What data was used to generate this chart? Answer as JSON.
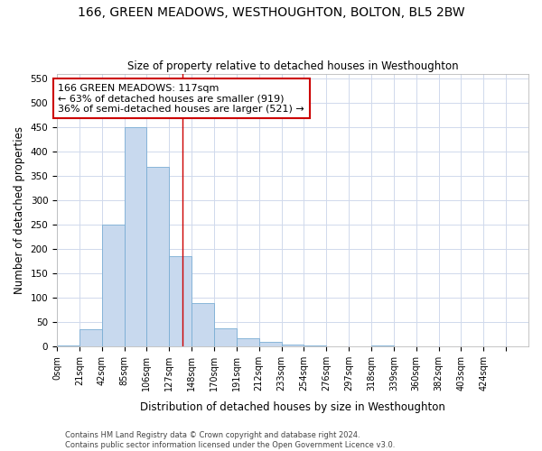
{
  "title": "166, GREEN MEADOWS, WESTHOUGHTON, BOLTON, BL5 2BW",
  "subtitle": "Size of property relative to detached houses in Westhoughton",
  "xlabel": "Distribution of detached houses by size in Westhoughton",
  "ylabel": "Number of detached properties",
  "bar_color": "#c8d9ee",
  "bar_edge_color": "#7aadd4",
  "property_size": 117,
  "property_line_color": "#cc0000",
  "annotation_text": "166 GREEN MEADOWS: 117sqm\n← 63% of detached houses are smaller (919)\n36% of semi-detached houses are larger (521) →",
  "annotation_box_color": "white",
  "annotation_box_edge_color": "#cc0000",
  "bins": [
    0,
    21,
    42,
    63,
    84,
    105,
    126,
    147,
    168,
    189,
    210,
    231,
    252,
    273,
    294,
    315,
    336,
    357,
    378,
    399,
    420
  ],
  "bin_labels": [
    "0sqm",
    "21sqm",
    "42sqm",
    "85sqm",
    "106sqm",
    "127sqm",
    "148sqm",
    "170sqm",
    "191sqm",
    "212sqm",
    "233sqm",
    "254sqm",
    "276sqm",
    "297sqm",
    "318sqm",
    "339sqm",
    "360sqm",
    "382sqm",
    "403sqm",
    "424sqm"
  ],
  "counts": [
    2,
    35,
    250,
    450,
    370,
    185,
    90,
    38,
    18,
    10,
    5,
    3,
    1,
    0,
    2,
    0,
    1,
    0,
    0,
    1
  ],
  "ylim": [
    0,
    560
  ],
  "yticks": [
    0,
    50,
    100,
    150,
    200,
    250,
    300,
    350,
    400,
    450,
    500,
    550
  ],
  "footer_text": "Contains HM Land Registry data © Crown copyright and database right 2024.\nContains public sector information licensed under the Open Government Licence v3.0.",
  "background_color": "#ffffff",
  "grid_color": "#d0d9ec"
}
